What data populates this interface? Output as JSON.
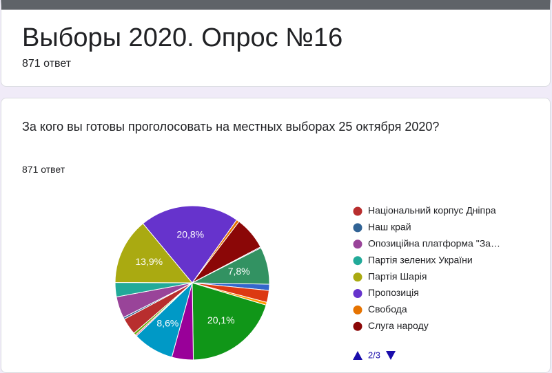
{
  "header": {
    "title": "Выборы 2020. Опрос №16",
    "responses": "871 ответ"
  },
  "question": {
    "text": "За кого вы готовы проголосовать на местных выборах 25 октября 2020?",
    "responses": "871 ответ"
  },
  "chart_data": {
    "type": "pie",
    "categories": [
      null,
      null,
      null,
      null,
      null,
      null,
      null,
      null,
      "Національний корпус Дніпра",
      "Наш край",
      "Опозиційна платформа \"За…",
      "Партія зелених України",
      "Партія Шарія",
      "Пропозиція",
      "Свобода",
      "Слуга народу",
      null,
      null
    ],
    "values": [
      1.3,
      2.5,
      0.6,
      20.1,
      4.5,
      8.6,
      0.3,
      0.5,
      3.5,
      0.4,
      4.5,
      3.0,
      13.9,
      20.8,
      0.6,
      6.9,
      0.2,
      7.8
    ],
    "value_labels": [
      null,
      null,
      null,
      "20,1%",
      null,
      "8,6%",
      null,
      null,
      null,
      null,
      null,
      null,
      "13,9%",
      "20,8%",
      null,
      null,
      null,
      "7,8%"
    ],
    "colors": [
      "#3366cc",
      "#dc3912",
      "#ff9900",
      "#109618",
      "#990099",
      "#0099c6",
      "#dd4477",
      "#66aa00",
      "#b82e2e",
      "#316395",
      "#994499",
      "#22aa99",
      "#aaaa11",
      "#6633cc",
      "#e67300",
      "#8b0707",
      "#651067",
      "#329262"
    ],
    "legend_page": "2/3"
  }
}
